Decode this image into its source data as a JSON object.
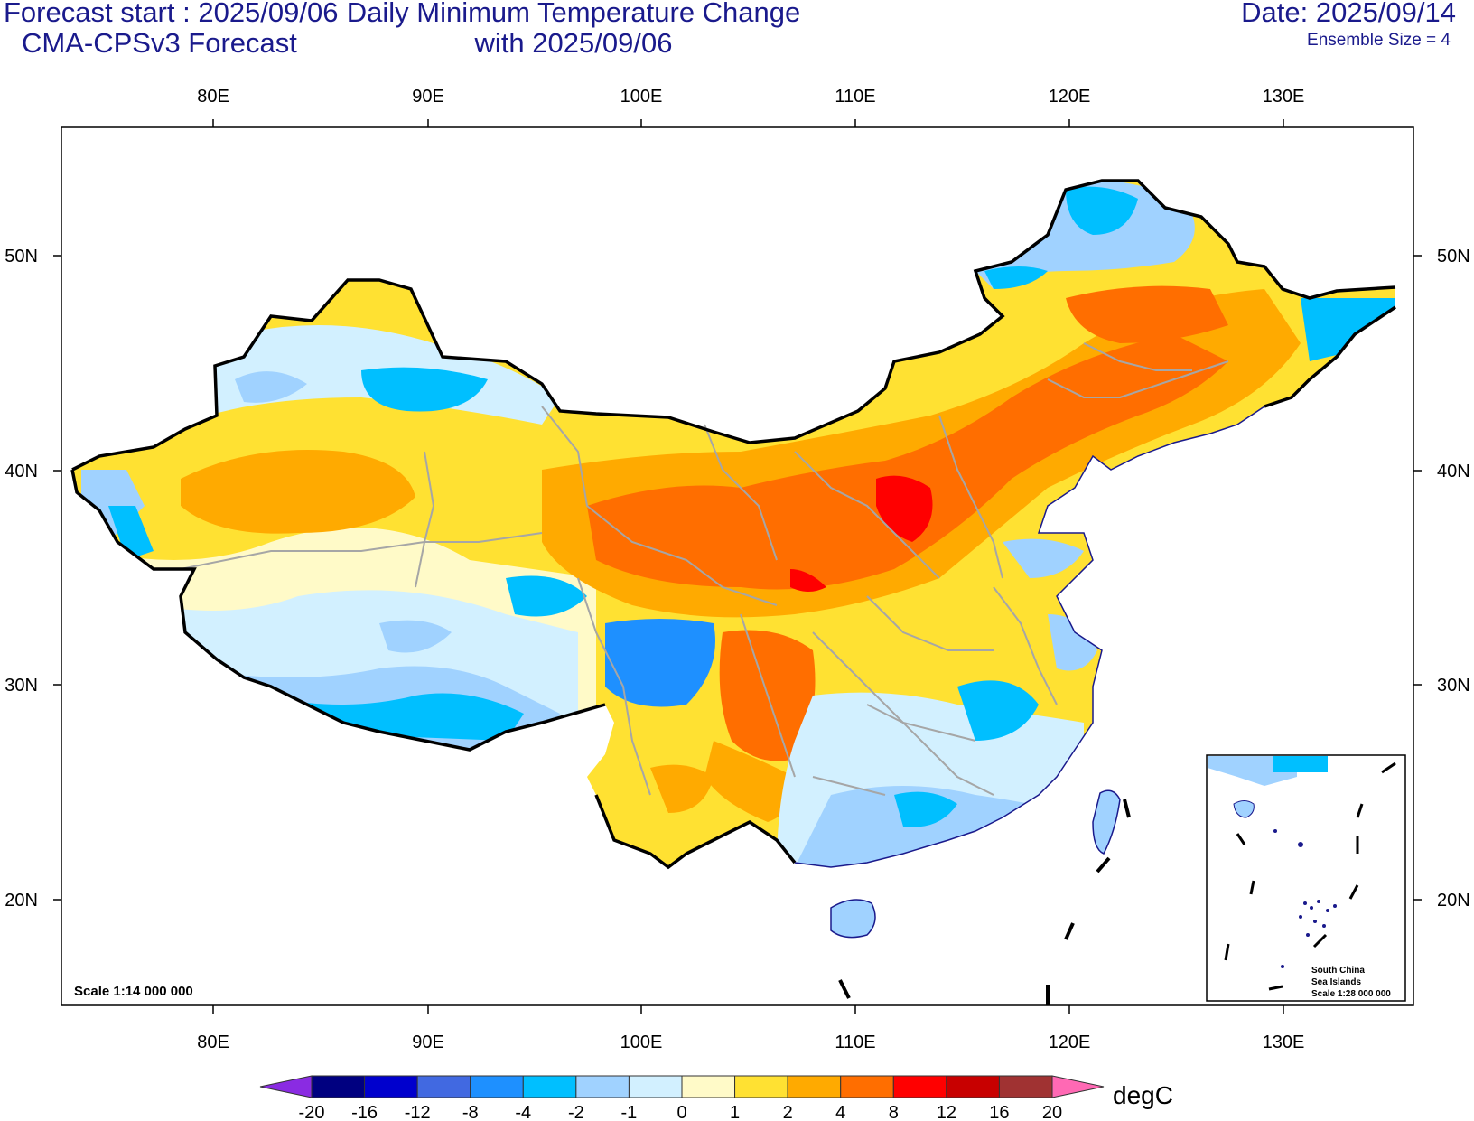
{
  "header": {
    "forecast_start": "Forecast start : 2025/09/06",
    "model": "CMA-CPSv3 Forecast",
    "title_line1": "Daily Minimum Temperature Change",
    "title_line2": "with 2025/09/06",
    "date": "Date: 2025/09/14",
    "ensemble": "Ensemble Size = 4"
  },
  "axes": {
    "lon_labels": [
      "80E",
      "90E",
      "100E",
      "110E",
      "120E",
      "130E"
    ],
    "lat_labels": [
      "50N",
      "40N",
      "30N",
      "20N"
    ]
  },
  "scale_text": "Scale 1:14 000 000",
  "inset": {
    "line1": "South China",
    "line2": "Sea Islands",
    "line3": "Scale 1:28 000 000"
  },
  "colorbar": {
    "unit": "degC",
    "labels": [
      "-20",
      "-16",
      "-12",
      "-8",
      "-4",
      "-2",
      "-1",
      "0",
      "1",
      "2",
      "4",
      "8",
      "12",
      "16",
      "20"
    ],
    "colors": [
      "#000080",
      "#0000cd",
      "#4169e1",
      "#1e90ff",
      "#00bfff",
      "#a0d2ff",
      "#d2f0ff",
      "#fffac8",
      "#ffe132",
      "#ffaa00",
      "#ff6e00",
      "#ff0000",
      "#c80000",
      "#a03232"
    ],
    "low_end_color": "#8a2be2",
    "high_end_color": "#ff69b4"
  }
}
